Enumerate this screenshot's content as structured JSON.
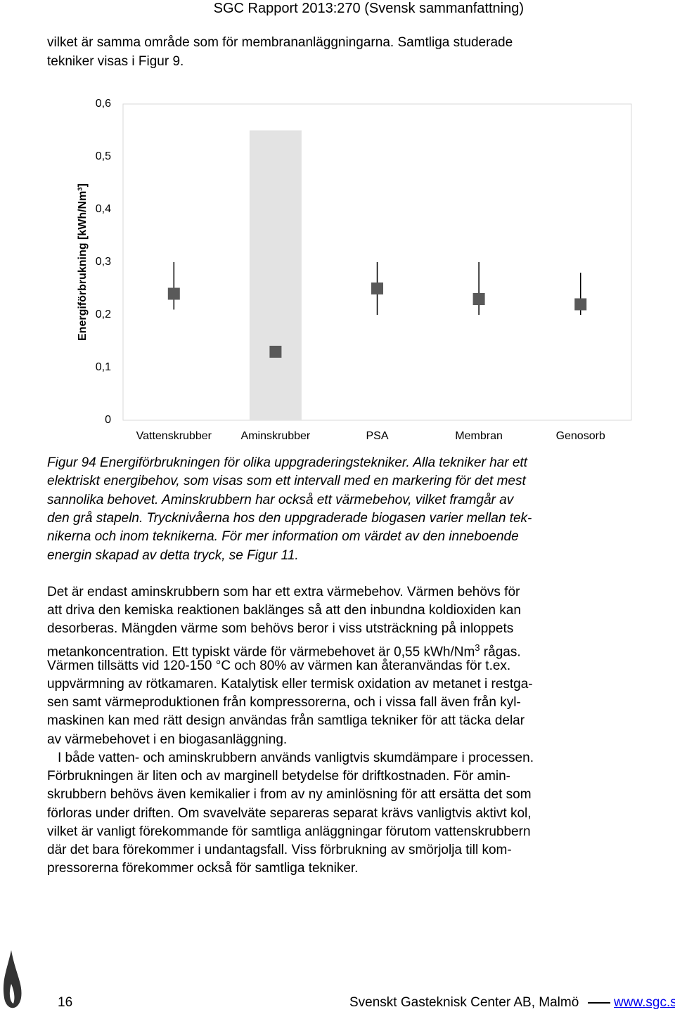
{
  "header": "SGC Rapport 2013:270 (Svensk sammanfattning)",
  "intro": [
    "vilket är samma område som för membrananläggningarna. Samtliga studerade",
    "tekniker visas i Figur 9."
  ],
  "chart_data": {
    "type": "interval",
    "y_label": "Energiförbrukning [kWh/Nm³]",
    "categories": [
      "Vattenskrubber",
      "Aminskrubber",
      "PSA",
      "Membran",
      "Genosorb"
    ],
    "values": [
      0.24,
      0.13,
      0.25,
      0.23,
      0.22
    ],
    "low": [
      0.21,
      null,
      0.2,
      0.2,
      0.2
    ],
    "high": [
      0.3,
      null,
      0.3,
      0.3,
      0.28
    ],
    "bar_values": [
      null,
      0.55,
      null,
      null,
      null
    ],
    "marker_color": "#595959",
    "bar_color": "#e3e3e3",
    "ylim": [
      0,
      0.6
    ],
    "yticks": [
      0,
      {
        "value": 0.1,
        "label": "0,1"
      },
      {
        "value": 0.2,
        "label": "0,2"
      },
      {
        "value": 0.3,
        "label": "0,3"
      },
      {
        "value": 0.4,
        "label": "0,4"
      },
      {
        "value": 0.5,
        "label": "0,5"
      },
      {
        "value": 0.6,
        "label": "0,6"
      }
    ]
  },
  "caption": [
    "Figur 94 Energiförbrukningen för olika uppgraderingstekniker. Alla tekniker har ett",
    "elektriskt energibehov, som visas som ett intervall med en markering för det mest",
    "sannolika behovet. Aminskrubbern har också ett värmebehov, vilket framgår av",
    "den grå stapeln. Trycknivåerna hos den uppgraderade biogasen varier mellan tek-",
    "nikerna och inom teknikerna. För mer information om värdet av den inneboende",
    "energin skapad av detta tryck, se Figur 11."
  ],
  "paragraphs": [
    [
      "Det är endast aminskrubbern som har ett extra värmebehov. Värmen behövs för",
      "att driva den kemiska reaktionen baklänges så att den inbundna koldioxiden kan",
      "desorberas. Mängden värme som behövs beror i viss utsträckning på inloppets",
      [
        "metankoncentration. Ett typiskt värde för värmebehovet är 0,55 kWh/Nm",
        "3",
        " rågas."
      ],
      "Värmen tillsätts vid 120-150 °C och 80% av värmen kan återanvändas för t.ex.",
      "uppvärmning av rötkamaren. Katalytisk eller termisk oxidation av metanet i restga-",
      "sen samt värmeproduktionen från kompressorerna, och i vissa fall även från kyl-",
      "maskinen kan med rätt design användas från samtliga tekniker för att täcka delar",
      "av värmebehovet i en biogasanläggning."
    ],
    [
      "I både vatten- och aminskrubbern används vanligtvis skumdämpare i processen.",
      "Förbrukningen är liten och av marginell betydelse för driftkostnaden. För amin-",
      "skrubbern behövs även kemikalier i from av ny aminlösning för att ersätta det som",
      "förloras under driften. Om svavelväte separeras separat krävs vanligtvis aktivt kol,",
      "vilket är vanligt förekommande för samtliga anläggningar förutom vattenskrubbern",
      "där det bara förekommer i undantagsfall. Viss förbrukning av smörjolja till kom-",
      "pressorerna förekommer också för samtliga tekniker."
    ]
  ],
  "footer": {
    "page": "16",
    "org": "Svenskt Gasteknisk Center AB, Malmö",
    "link": "www.sgc.se"
  }
}
